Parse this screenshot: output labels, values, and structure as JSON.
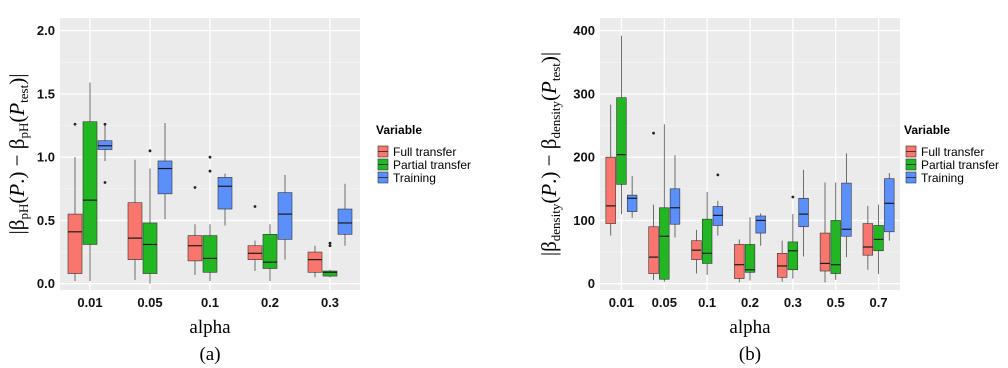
{
  "legend": {
    "title": "Variable",
    "entries": [
      {
        "label": "Full transfer",
        "color": "#f8766d"
      },
      {
        "label": "Partial transfer",
        "color": "#22b722"
      },
      {
        "label": "Training",
        "color": "#5b8ff9"
      }
    ]
  },
  "chart_data": [
    {
      "type": "boxplot",
      "panel_caption": "(a)",
      "xlabel": "alpha",
      "ylabel": "|β_pH(P.) − β_pH(P_test)|",
      "ylim": [
        -0.05,
        2.1
      ],
      "yticks": [
        "0.0",
        "0.5",
        "1.0",
        "1.5",
        "2.0"
      ],
      "yticks_values": [
        0,
        0.5,
        1.0,
        1.5,
        2.0
      ],
      "categories": [
        "0.01",
        "0.05",
        "0.1",
        "0.2",
        "0.3"
      ],
      "grid": true,
      "series": [
        {
          "name": "Full transfer",
          "boxes": [
            {
              "min": 0.02,
              "q1": 0.08,
              "median": 0.41,
              "q3": 0.55,
              "max": 1.0,
              "outliers": [
                1.26
              ]
            },
            {
              "min": 0.03,
              "q1": 0.19,
              "median": 0.36,
              "q3": 0.64,
              "max": 0.98,
              "outliers": []
            },
            {
              "min": 0.07,
              "q1": 0.18,
              "median": 0.3,
              "q3": 0.38,
              "max": 0.47,
              "outliers": [
                0.76
              ]
            },
            {
              "min": 0.1,
              "q1": 0.19,
              "median": 0.24,
              "q3": 0.3,
              "max": 0.34,
              "outliers": [
                0.61
              ]
            },
            {
              "min": 0.05,
              "q1": 0.09,
              "median": 0.19,
              "q3": 0.25,
              "max": 0.3,
              "outliers": []
            }
          ]
        },
        {
          "name": "Partial transfer",
          "boxes": [
            {
              "min": 0.02,
              "q1": 0.31,
              "median": 0.66,
              "q3": 1.28,
              "max": 1.59,
              "outliers": []
            },
            {
              "min": 0.0,
              "q1": 0.08,
              "median": 0.31,
              "q3": 0.48,
              "max": 0.91,
              "outliers": [
                1.05
              ]
            },
            {
              "min": 0.02,
              "q1": 0.09,
              "median": 0.2,
              "q3": 0.38,
              "max": 0.47,
              "outliers": [
                0.89,
                1.0
              ]
            },
            {
              "min": 0.02,
              "q1": 0.12,
              "median": 0.17,
              "q3": 0.39,
              "max": 0.47,
              "outliers": []
            },
            {
              "min": 0.05,
              "q1": 0.06,
              "median": 0.09,
              "q3": 0.1,
              "max": 0.11,
              "outliers": [
                0.3,
                0.32
              ]
            }
          ]
        },
        {
          "name": "Training",
          "boxes": [
            {
              "min": 0.97,
              "q1": 1.06,
              "median": 1.09,
              "q3": 1.13,
              "max": 1.25,
              "outliers": [
                1.26,
                0.8
              ]
            },
            {
              "min": 0.51,
              "q1": 0.71,
              "median": 0.91,
              "q3": 0.97,
              "max": 1.27,
              "outliers": []
            },
            {
              "min": 0.46,
              "q1": 0.59,
              "median": 0.77,
              "q3": 0.84,
              "max": 0.87,
              "outliers": []
            },
            {
              "min": 0.19,
              "q1": 0.35,
              "median": 0.55,
              "q3": 0.72,
              "max": 0.86,
              "outliers": []
            },
            {
              "min": 0.3,
              "q1": 0.39,
              "median": 0.48,
              "q3": 0.59,
              "max": 0.79,
              "outliers": []
            }
          ]
        }
      ]
    },
    {
      "type": "boxplot",
      "panel_caption": "(b)",
      "xlabel": "alpha",
      "ylabel": "|β_density(P.) − β_density(P_test)|",
      "ylim": [
        -10,
        420
      ],
      "yticks": [
        "0",
        "100",
        "200",
        "300",
        "400"
      ],
      "yticks_values": [
        0,
        100,
        200,
        300,
        400
      ],
      "categories": [
        "0.01",
        "0.05",
        "0.1",
        "0.2",
        "0.3",
        "0.5",
        "0.7"
      ],
      "grid": true,
      "series": [
        {
          "name": "Full transfer",
          "boxes": [
            {
              "min": 76,
              "q1": 95,
              "median": 123,
              "q3": 200,
              "max": 283,
              "outliers": []
            },
            {
              "min": 6,
              "q1": 16,
              "median": 42,
              "q3": 90,
              "max": 125,
              "outliers": [
                238
              ]
            },
            {
              "min": 16,
              "q1": 38,
              "median": 53,
              "q3": 68,
              "max": 85,
              "outliers": []
            },
            {
              "min": 2,
              "q1": 8,
              "median": 30,
              "q3": 62,
              "max": 70,
              "outliers": []
            },
            {
              "min": 3,
              "q1": 10,
              "median": 28,
              "q3": 48,
              "max": 68,
              "outliers": []
            },
            {
              "min": 2,
              "q1": 20,
              "median": 32,
              "q3": 80,
              "max": 160,
              "outliers": []
            },
            {
              "min": 22,
              "q1": 45,
              "median": 58,
              "q3": 95,
              "max": 123,
              "outliers": []
            }
          ]
        },
        {
          "name": "Partial transfer",
          "boxes": [
            {
              "min": 110,
              "q1": 157,
              "median": 204,
              "q3": 294,
              "max": 392,
              "outliers": []
            },
            {
              "min": 3,
              "q1": 7,
              "median": 75,
              "q3": 120,
              "max": 252,
              "outliers": []
            },
            {
              "min": 14,
              "q1": 32,
              "median": 48,
              "q3": 102,
              "max": 145,
              "outliers": []
            },
            {
              "min": 5,
              "q1": 18,
              "median": 22,
              "q3": 62,
              "max": 105,
              "outliers": []
            },
            {
              "min": 8,
              "q1": 22,
              "median": 52,
              "q3": 66,
              "max": 110,
              "outliers": [
                137
              ]
            },
            {
              "min": 6,
              "q1": 16,
              "median": 30,
              "q3": 100,
              "max": 160,
              "outliers": []
            },
            {
              "min": 15,
              "q1": 52,
              "median": 70,
              "q3": 92,
              "max": 125,
              "outliers": []
            }
          ]
        },
        {
          "name": "Training",
          "boxes": [
            {
              "min": 104,
              "q1": 114,
              "median": 135,
              "q3": 140,
              "max": 170,
              "outliers": []
            },
            {
              "min": 73,
              "q1": 94,
              "median": 120,
              "q3": 150,
              "max": 203,
              "outliers": []
            },
            {
              "min": 76,
              "q1": 92,
              "median": 108,
              "q3": 122,
              "max": 131,
              "outliers": [
                172
              ]
            },
            {
              "min": 60,
              "q1": 80,
              "median": 100,
              "q3": 107,
              "max": 111,
              "outliers": []
            },
            {
              "min": 43,
              "q1": 90,
              "median": 110,
              "q3": 135,
              "max": 180,
              "outliers": []
            },
            {
              "min": 42,
              "q1": 75,
              "median": 86,
              "q3": 159,
              "max": 206,
              "outliers": []
            },
            {
              "min": 68,
              "q1": 82,
              "median": 127,
              "q3": 166,
              "max": 175,
              "outliers": []
            }
          ]
        }
      ]
    }
  ]
}
